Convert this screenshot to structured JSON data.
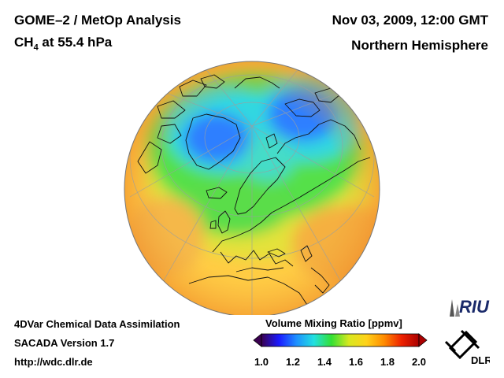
{
  "header": {
    "left_title": "GOME–2 / MetOp Analysis",
    "species": "CH",
    "species_sub": "4",
    "species_level": " at 55.4 hPa",
    "datetime": "Nov 03, 2009, 12:00 GMT",
    "hemisphere": "Northern Hemisphere"
  },
  "footer": {
    "line1": "4DVar Chemical Data Assimilation",
    "line2": "SACADA Version 1.7",
    "line3": "http://wdc.dlr.de"
  },
  "colorbar": {
    "title": "Volume Mixing Ratio [ppmv]",
    "ticks": [
      "1.0",
      "1.2",
      "1.4",
      "1.6",
      "1.8",
      "2.0"
    ],
    "min": 1.0,
    "max": 2.0,
    "colors": [
      "#3a0050",
      "#1a1aff",
      "#1e90ff",
      "#22e0e0",
      "#33e033",
      "#d8e820",
      "#ffd21a",
      "#ff8c00",
      "#ee2200",
      "#aa0000"
    ]
  },
  "logos": {
    "riu": "RIU",
    "dlr": "DLR"
  },
  "map": {
    "projection": "orthographic",
    "hemisphere": "north",
    "field_colors": {
      "low": "#2f7fff",
      "mid_low": "#33d8e0",
      "mid": "#55e04a",
      "mid_high": "#e4e23a",
      "high": "#ffcc44",
      "edge": "#f2a03a"
    }
  }
}
